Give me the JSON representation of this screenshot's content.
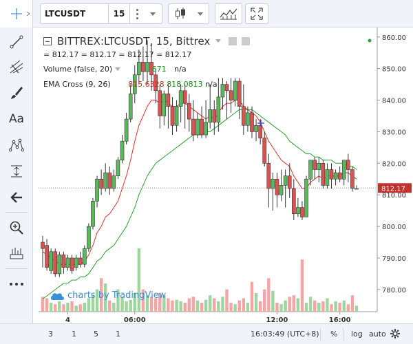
{
  "toolbar": {
    "symbol": "LTCUSDT",
    "interval": "15"
  },
  "legend": {
    "title": "BITTREX:LTCUSDT, 15, Bittrex",
    "ohlc_text": "= 812.17 = 812.17 = 812.17 = 812.17",
    "volume_label": "Volume (false, 20)",
    "volume_value": "671",
    "volume_na": "n/a",
    "ema_label": "EMA Cross (9, 26)",
    "ema_fast": "815.6328",
    "ema_slow": "818.0813",
    "ema_na": "n/a"
  },
  "watermark": "charts by TradingView",
  "price_axis": {
    "labels": [
      "860.00",
      "850.00",
      "840.00",
      "830.00",
      "820.00",
      "810.00",
      "800.00",
      "790.00",
      "780.00"
    ],
    "current_price": "812.17"
  },
  "time_axis": {
    "labels": [
      "4",
      "06:00",
      "12:00",
      "16:00"
    ]
  },
  "bottom_bar": {
    "ranges": [
      "3",
      "1",
      "5",
      "1"
    ],
    "clock": "16:03:49 (UTC+8)",
    "percent": "%",
    "log": "log",
    "auto": "auto"
  },
  "colors": {
    "up": "#5cb85c",
    "down": "#d9534f",
    "ema_fast": "#e0302a",
    "ema_slow": "#2e9e2e",
    "vol_up": "#9fd69f",
    "vol_down": "#f4a6a6"
  },
  "chart_data": {
    "type": "candlestick",
    "ylim": [
      773,
      863
    ],
    "candles": [
      [
        795,
        793,
        797,
        787
      ],
      [
        794,
        787,
        796,
        786
      ],
      [
        786,
        792,
        793,
        785
      ],
      [
        792,
        785,
        793,
        784
      ],
      [
        785,
        791,
        792,
        784
      ],
      [
        791,
        787,
        792,
        785
      ],
      [
        787,
        790,
        791,
        786
      ],
      [
        790,
        786,
        791,
        785
      ],
      [
        787,
        790,
        791,
        786
      ],
      [
        790,
        788,
        792,
        787
      ],
      [
        788,
        793,
        794,
        787
      ],
      [
        793,
        800,
        801,
        792
      ],
      [
        800,
        808,
        809,
        799
      ],
      [
        808,
        815,
        816,
        806
      ],
      [
        815,
        812,
        818,
        810
      ],
      [
        812,
        817,
        820,
        811
      ],
      [
        817,
        812,
        819,
        810
      ],
      [
        812,
        816,
        818,
        811
      ],
      [
        816,
        821,
        822,
        815
      ],
      [
        821,
        827,
        829,
        820
      ],
      [
        827,
        834,
        836,
        826
      ],
      [
        834,
        842,
        845,
        833
      ],
      [
        842,
        848,
        851,
        839
      ],
      [
        848,
        852,
        856,
        845
      ],
      [
        852,
        849,
        857,
        846
      ],
      [
        849,
        852,
        859,
        845
      ],
      [
        852,
        848,
        858,
        843
      ],
      [
        848,
        843,
        850,
        839
      ],
      [
        843,
        835,
        845,
        831
      ],
      [
        835,
        842,
        843,
        832
      ],
      [
        842,
        838,
        845,
        831
      ],
      [
        838,
        832,
        841,
        829
      ],
      [
        832,
        838,
        840,
        830
      ],
      [
        838,
        843,
        845,
        833
      ],
      [
        843,
        839,
        845,
        831
      ],
      [
        839,
        834,
        842,
        830
      ],
      [
        834,
        829,
        840,
        827
      ],
      [
        829,
        834,
        836,
        828
      ],
      [
        834,
        829,
        838,
        828
      ],
      [
        829,
        833,
        840,
        828
      ],
      [
        833,
        837,
        845,
        831
      ],
      [
        837,
        833,
        840,
        829
      ],
      [
        833,
        841,
        847,
        830
      ],
      [
        841,
        845,
        847,
        837
      ],
      [
        845,
        843,
        846,
        834
      ],
      [
        843,
        840,
        847,
        836
      ],
      [
        840,
        846,
        847,
        838
      ],
      [
        846,
        838,
        847,
        834
      ],
      [
        838,
        832,
        845,
        829
      ],
      [
        832,
        836,
        838,
        830
      ],
      [
        836,
        830,
        838,
        828
      ],
      [
        830,
        832,
        834,
        827
      ],
      [
        832,
        828,
        834,
        826
      ],
      [
        828,
        820,
        830,
        819
      ],
      [
        820,
        812,
        823,
        806
      ],
      [
        812,
        815,
        817,
        805
      ],
      [
        815,
        810,
        817,
        806
      ],
      [
        810,
        813,
        818,
        808
      ],
      [
        813,
        816,
        818,
        806
      ],
      [
        816,
        812,
        820,
        809
      ],
      [
        812,
        804,
        815,
        802
      ],
      [
        804,
        806,
        809,
        803
      ],
      [
        806,
        803,
        808,
        802
      ],
      [
        803,
        815,
        816,
        803
      ],
      [
        815,
        821,
        821,
        813
      ],
      [
        821,
        818,
        822,
        815
      ],
      [
        818,
        820,
        822,
        814
      ],
      [
        820,
        813,
        821,
        812
      ],
      [
        813,
        818,
        820,
        812
      ],
      [
        818,
        815,
        820,
        812
      ],
      [
        815,
        817,
        818,
        813
      ],
      [
        817,
        815,
        819,
        814
      ],
      [
        815,
        821,
        821,
        813
      ],
      [
        821,
        818,
        823,
        814
      ],
      [
        818,
        812,
        819,
        811
      ],
      [
        812,
        812,
        813,
        812
      ]
    ],
    "ema_fast": [
      792,
      791,
      790,
      789,
      788,
      788,
      788,
      788,
      788,
      788,
      789,
      791,
      794,
      798,
      800,
      803,
      804,
      806,
      808,
      812,
      816,
      821,
      827,
      832,
      835,
      838,
      840,
      840,
      839,
      840,
      839,
      838,
      838,
      839,
      839,
      838,
      837,
      836,
      835,
      834,
      835,
      834,
      836,
      838,
      839,
      839,
      840,
      840,
      838,
      837,
      836,
      835,
      833,
      830,
      827,
      825,
      823,
      821,
      820,
      819,
      816,
      814,
      812,
      812,
      814,
      815,
      816,
      815,
      816,
      816,
      816,
      816,
      817,
      817,
      816,
      815
    ],
    "ema_slow": [
      777,
      778,
      779,
      780,
      781,
      782,
      782,
      783,
      783,
      784,
      784,
      785,
      787,
      789,
      790,
      792,
      793,
      794,
      796,
      798,
      800,
      803,
      806,
      810,
      813,
      816,
      818,
      820,
      821,
      822,
      823,
      824,
      825,
      826,
      827,
      828,
      829,
      829,
      829,
      830,
      830,
      831,
      832,
      833,
      834,
      835,
      836,
      837,
      837,
      837,
      837,
      836,
      835,
      834,
      833,
      832,
      831,
      830,
      829,
      827,
      826,
      825,
      824,
      823,
      823,
      822,
      822,
      821,
      821,
      821,
      820,
      820,
      820,
      819,
      819,
      818
    ],
    "volume": [
      20,
      18,
      12,
      10,
      14,
      10,
      12,
      14,
      8,
      10,
      12,
      18,
      22,
      30,
      45,
      38,
      15,
      12,
      30,
      20,
      14,
      16,
      25,
      85,
      30,
      22,
      20,
      18,
      25,
      22,
      18,
      15,
      16,
      14,
      12,
      18,
      20,
      15,
      12,
      16,
      22,
      18,
      14,
      20,
      30,
      12,
      10,
      15,
      18,
      12,
      40,
      25,
      14,
      30,
      45,
      28,
      12,
      10,
      15,
      20,
      22,
      18,
      70,
      12,
      20,
      15,
      12,
      14,
      18,
      10,
      14,
      12,
      15,
      10,
      22,
      8
    ]
  }
}
